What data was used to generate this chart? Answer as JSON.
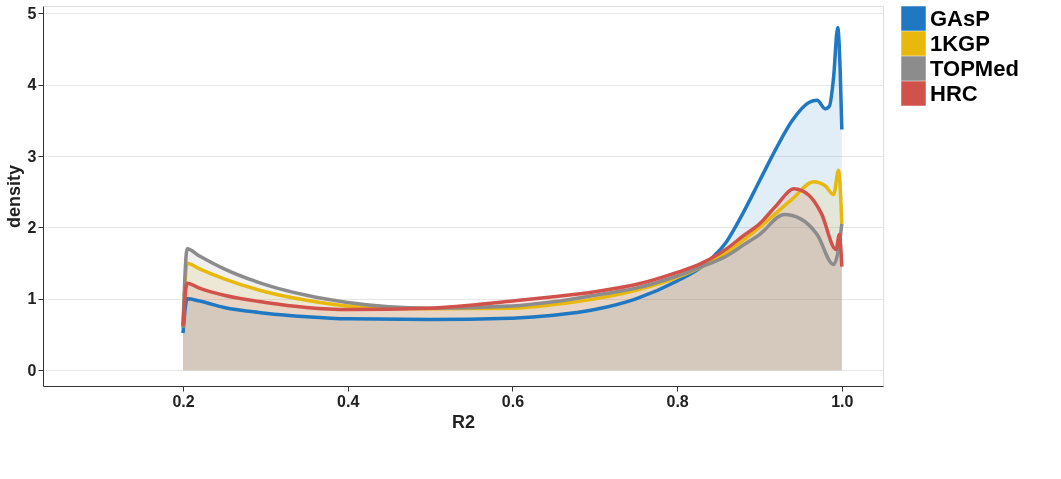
{
  "chart_data": {
    "type": "area",
    "xlabel": "R2",
    "ylabel": "density",
    "xlim": [
      0.03,
      1.05
    ],
    "ylim": [
      -0.22,
      5.1
    ],
    "xticks": [
      0.2,
      0.4,
      0.6,
      0.8,
      {
        "value": 1.0,
        "label": "1.0"
      }
    ],
    "yticks": [
      0,
      1,
      2,
      3,
      4,
      5
    ],
    "grid": "y",
    "legend": "right",
    "series": [
      {
        "name": "GAsP",
        "color": "#1f78c1",
        "x": [
          0.2,
          0.205,
          0.22,
          0.25,
          0.3,
          0.35,
          0.4,
          0.5,
          0.6,
          0.65,
          0.7,
          0.75,
          0.8,
          0.83,
          0.86,
          0.88,
          0.9,
          0.92,
          0.94,
          0.96,
          0.97,
          0.98,
          0.985,
          0.99,
          0.995,
          0.998,
          1.0
        ],
        "values": [
          0.52,
          1.0,
          0.97,
          0.88,
          0.8,
          0.75,
          0.72,
          0.71,
          0.73,
          0.77,
          0.85,
          1.0,
          1.25,
          1.45,
          1.8,
          2.2,
          2.65,
          3.1,
          3.5,
          3.75,
          3.78,
          3.66,
          3.7,
          4.1,
          4.8,
          4.2,
          3.37
        ]
      },
      {
        "name": "1KGP",
        "color": "#e8b90c",
        "x": [
          0.2,
          0.205,
          0.22,
          0.25,
          0.3,
          0.35,
          0.4,
          0.5,
          0.6,
          0.65,
          0.7,
          0.75,
          0.8,
          0.83,
          0.86,
          0.88,
          0.9,
          0.92,
          0.94,
          0.966,
          0.98,
          0.99,
          0.996,
          1.0
        ],
        "values": [
          0.6,
          1.5,
          1.42,
          1.28,
          1.1,
          0.98,
          0.9,
          0.86,
          0.87,
          0.92,
          1.0,
          1.12,
          1.3,
          1.45,
          1.65,
          1.82,
          2.0,
          2.2,
          2.4,
          2.64,
          2.58,
          2.46,
          2.8,
          2.05
        ]
      },
      {
        "name": "TOPMed",
        "color": "#8c8c8c",
        "x": [
          0.2,
          0.205,
          0.22,
          0.25,
          0.3,
          0.35,
          0.4,
          0.5,
          0.6,
          0.65,
          0.7,
          0.75,
          0.8,
          0.83,
          0.86,
          0.88,
          0.9,
          0.93,
          0.95,
          0.97,
          0.99,
          0.996,
          1.0
        ],
        "values": [
          0.6,
          1.7,
          1.6,
          1.42,
          1.2,
          1.05,
          0.95,
          0.87,
          0.9,
          0.96,
          1.05,
          1.15,
          1.32,
          1.45,
          1.6,
          1.75,
          1.9,
          2.18,
          2.12,
          1.9,
          1.48,
          1.7,
          2.05
        ]
      },
      {
        "name": "HRC",
        "color": "#d1524a",
        "x": [
          0.2,
          0.205,
          0.22,
          0.25,
          0.3,
          0.35,
          0.4,
          0.5,
          0.6,
          0.65,
          0.7,
          0.75,
          0.8,
          0.83,
          0.86,
          0.88,
          0.9,
          0.92,
          0.942,
          0.96,
          0.975,
          0.993,
          0.997,
          1.0
        ],
        "values": [
          0.62,
          1.22,
          1.15,
          1.05,
          0.95,
          0.88,
          0.85,
          0.87,
          0.97,
          1.03,
          1.1,
          1.2,
          1.37,
          1.5,
          1.7,
          1.88,
          2.05,
          2.3,
          2.54,
          2.45,
          2.2,
          1.69,
          1.9,
          1.45
        ]
      }
    ]
  }
}
